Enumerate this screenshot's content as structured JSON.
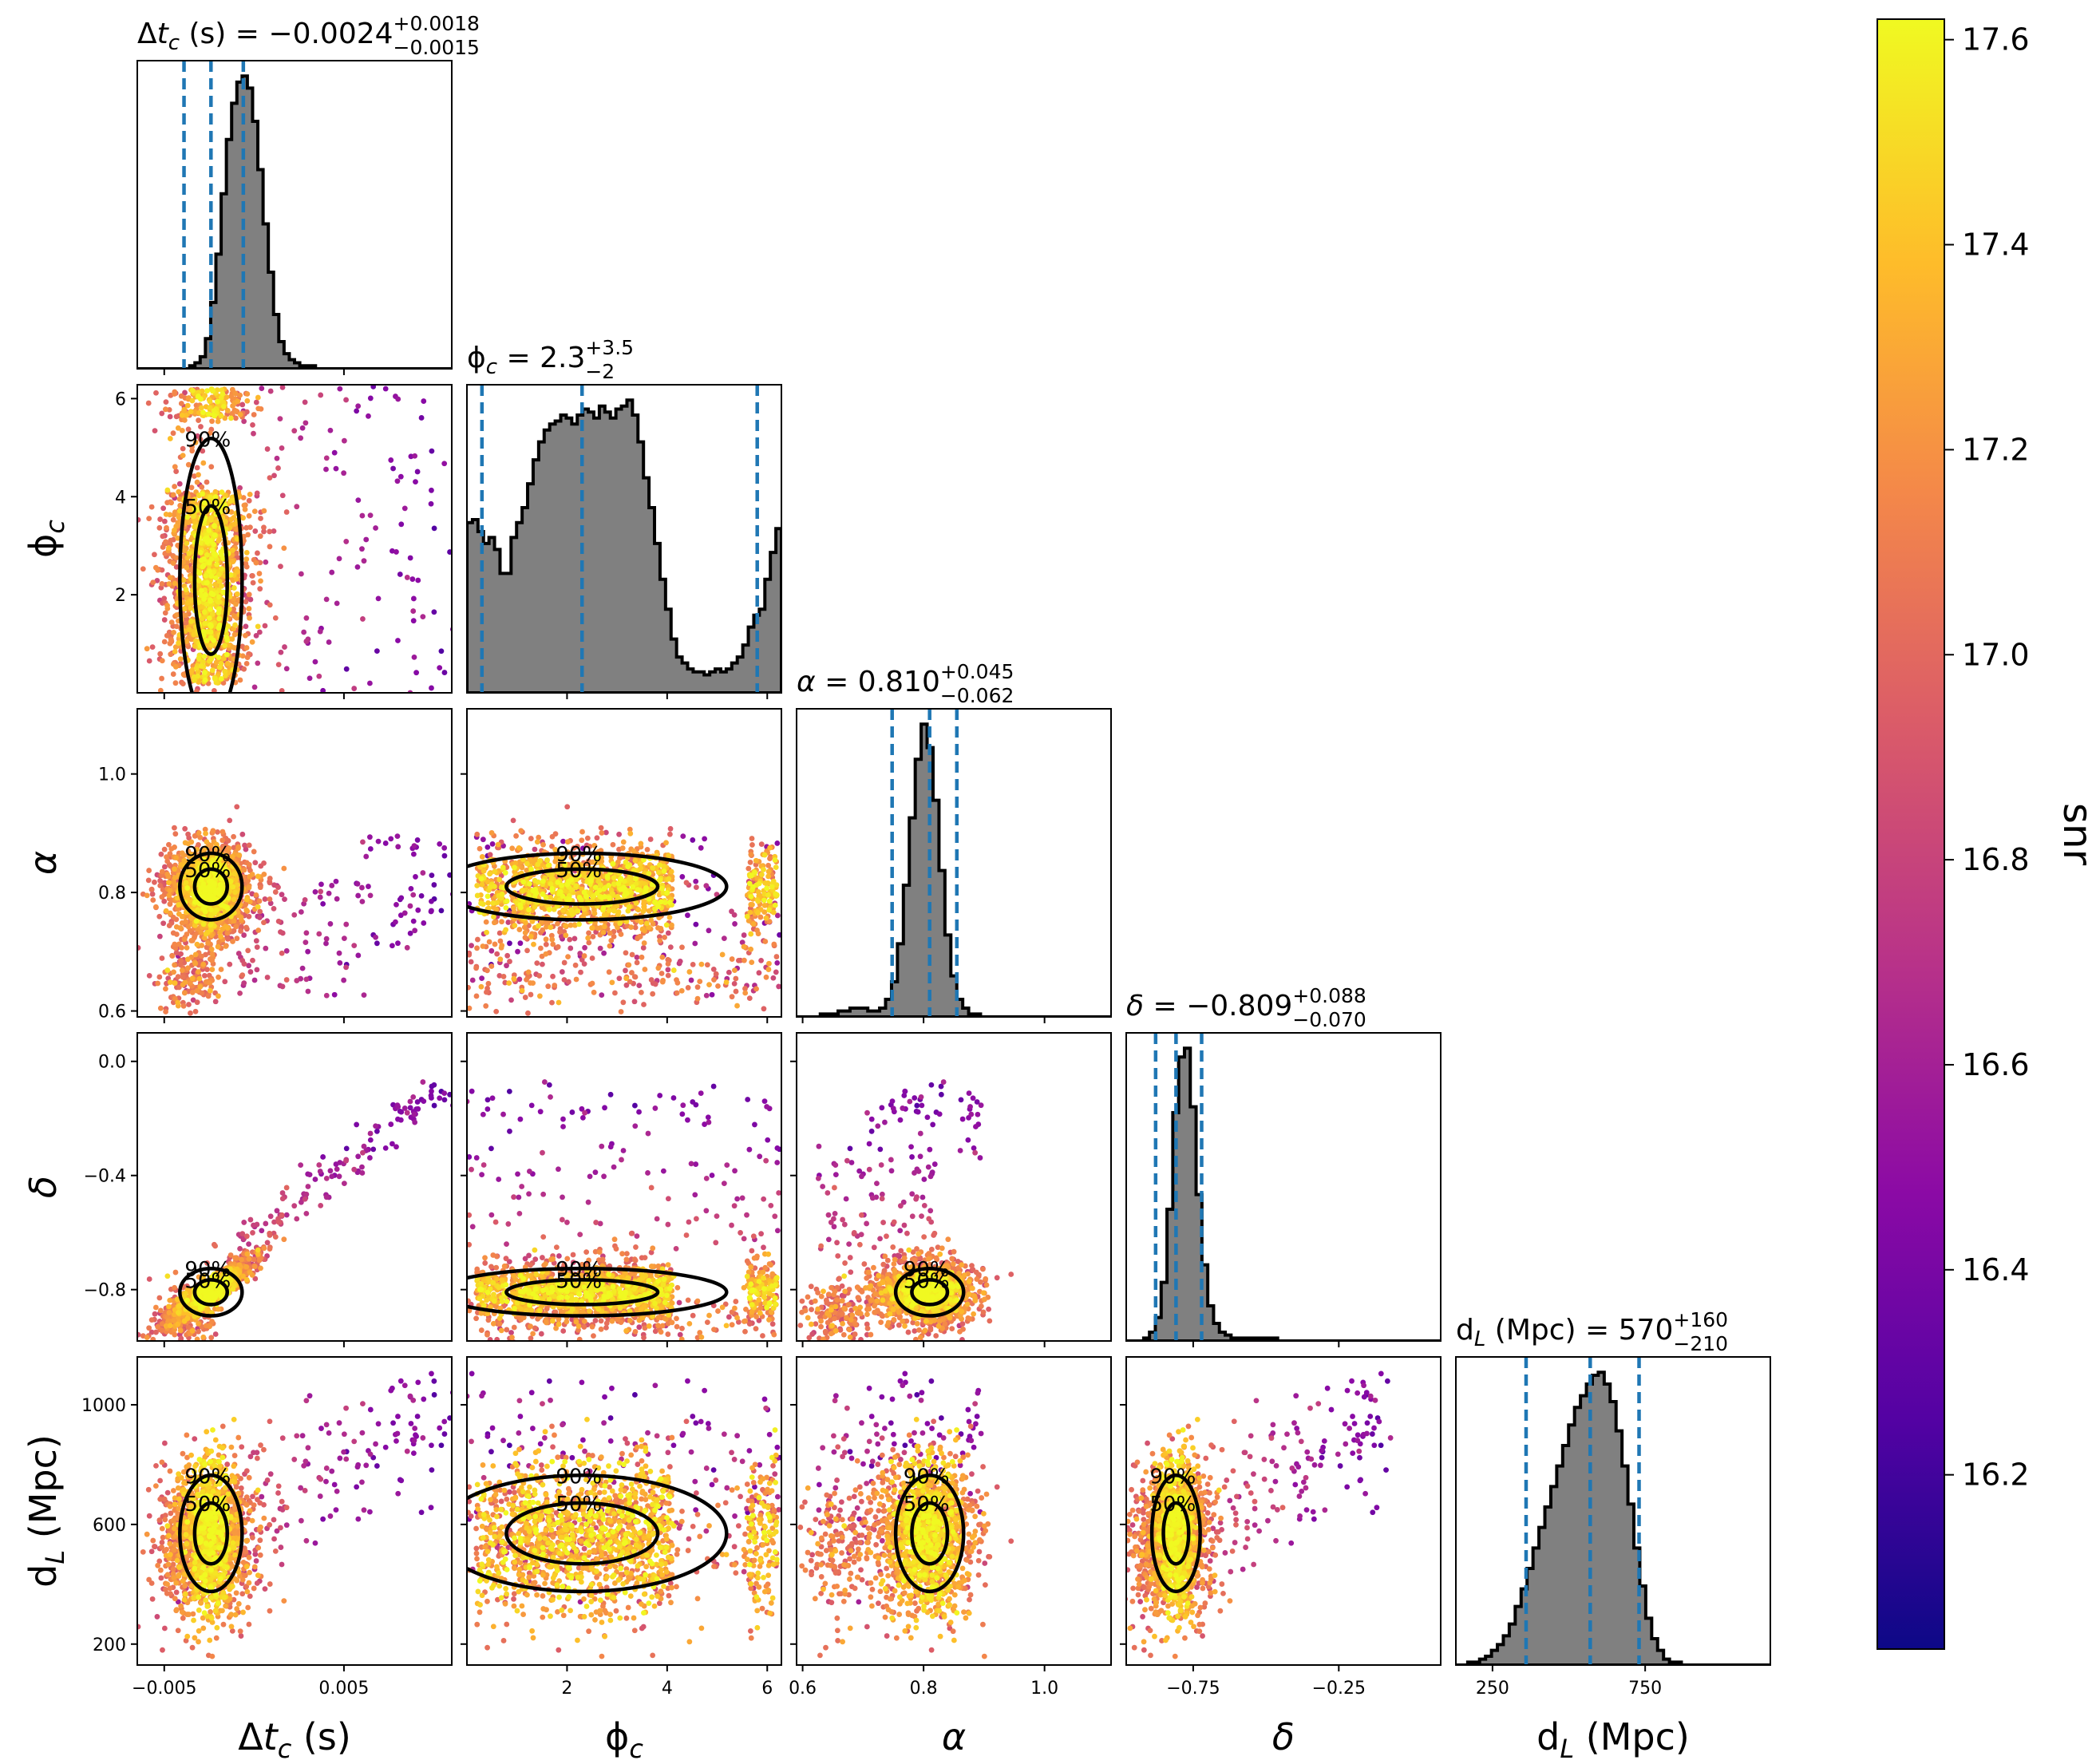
{
  "chart_data": {
    "type": "corner",
    "parameters": [
      {
        "key": "dtc",
        "axis_label_parts": [
          "Δ",
          "t",
          "c",
          " (s)"
        ],
        "range": [
          -0.0065,
          0.011
        ],
        "ticks": [
          {
            "v": -0.005,
            "label": "−0.005"
          },
          {
            "v": 0.005,
            "label": "0.005"
          }
        ],
        "median": -0.0024,
        "lower": -0.0039,
        "upper": -0.0006,
        "title": {
          "name_parts": [
            "Δ",
            "t",
            "c",
            " (s)"
          ],
          "value": "−0.0024",
          "plus": "+0.0018",
          "minus": "−0.0015"
        },
        "hist": [
          0,
          0,
          0,
          0,
          0,
          0,
          0,
          0,
          0,
          0,
          1,
          2,
          4,
          10,
          22,
          38,
          58,
          76,
          88,
          95,
          97,
          93,
          82,
          66,
          48,
          32,
          18,
          9,
          5,
          3,
          2,
          1,
          1,
          1,
          0,
          0,
          0,
          0,
          0,
          0,
          0,
          0,
          0,
          0,
          0,
          0,
          0,
          0,
          0,
          0,
          0,
          0,
          0,
          0,
          0,
          0,
          0,
          0,
          0,
          0
        ]
      },
      {
        "key": "phic",
        "axis_label_parts": [
          "ϕ",
          "",
          "c",
          ""
        ],
        "range": [
          0.0,
          6.283
        ],
        "ticks": [
          {
            "v": 2,
            "label": "2"
          },
          {
            "v": 4,
            "label": "4"
          },
          {
            "v": 6,
            "label": "6"
          }
        ],
        "median": 2.3,
        "lower": 0.3,
        "upper": 5.8,
        "title": {
          "name_parts": [
            "ϕ",
            "",
            "c",
            ""
          ],
          "value": "2.3",
          "plus": "+3.5",
          "minus": "−2"
        },
        "hist": [
          57,
          58,
          54,
          50,
          52,
          48,
          40,
          40,
          52,
          57,
          62,
          70,
          78,
          84,
          88,
          90,
          91,
          93,
          92,
          90,
          93,
          95,
          94,
          92,
          96,
          94,
          92,
          95,
          96,
          98,
          93,
          84,
          72,
          62,
          50,
          38,
          28,
          18,
          12,
          10,
          8,
          7,
          7,
          6,
          7,
          8,
          7,
          8,
          10,
          12,
          16,
          22,
          26,
          28,
          38,
          47,
          55
        ]
      },
      {
        "key": "alpha",
        "axis_label_parts": [
          "α",
          "",
          "",
          ""
        ],
        "range": [
          0.59,
          1.11
        ],
        "ticks": [
          {
            "v": 0.6,
            "label": "0.6"
          },
          {
            "v": 0.8,
            "label": "0.8"
          },
          {
            "v": 1.0,
            "label": "1.0"
          }
        ],
        "median": 0.81,
        "lower": 0.748,
        "upper": 0.855,
        "title": {
          "name_parts": [
            "α",
            "",
            "",
            ""
          ],
          "value": "0.810",
          "plus": "+0.045",
          "minus": "−0.062"
        },
        "hist": [
          0,
          0,
          0,
          0,
          1,
          1,
          1,
          2,
          2,
          3,
          3,
          3,
          2,
          2,
          3,
          6,
          12,
          25,
          45,
          68,
          88,
          100,
          92,
          74,
          50,
          28,
          14,
          6,
          3,
          1,
          1,
          0,
          0,
          0,
          0,
          0,
          0,
          0,
          0,
          0,
          0,
          0,
          0,
          0,
          0,
          0,
          0,
          0,
          0,
          0,
          0,
          0,
          0
        ]
      },
      {
        "key": "delta",
        "axis_label_parts": [
          "δ",
          "",
          "",
          ""
        ],
        "range": [
          -0.98,
          0.1
        ],
        "ticks": [
          {
            "v": -0.75,
            "label": "−0.75"
          },
          {
            "v": -0.25,
            "label": "−0.25"
          }
        ],
        "median": -0.809,
        "lower": -0.879,
        "upper": -0.721,
        "title": {
          "name_parts": [
            "δ",
            "",
            "",
            ""
          ],
          "value": "−0.809",
          "plus": "+0.088",
          "minus": "−0.070"
        },
        "hist": [
          0,
          0,
          0,
          1,
          3,
          8,
          20,
          45,
          78,
          97,
          100,
          80,
          50,
          26,
          12,
          6,
          3,
          2,
          1,
          1,
          1,
          1,
          1,
          1,
          1,
          1,
          0,
          0,
          0,
          0,
          0,
          0,
          0,
          0,
          0,
          0,
          0,
          0,
          0,
          0,
          0,
          0,
          0,
          0,
          0,
          0,
          0,
          0,
          0,
          0,
          0,
          0,
          0,
          0
        ]
      },
      {
        "key": "dl",
        "axis_label_parts": [
          "d",
          "",
          "L",
          " (Mpc)"
        ],
        "range": [
          130,
          1160
        ],
        "ticks": [
          {
            "v": 250,
            "label": "250"
          },
          {
            "v": 750,
            "label": "750"
          }
        ],
        "median": 570,
        "lower": 360,
        "upper": 730,
        "title": {
          "name_parts": [
            "d",
            "",
            "L",
            " (Mpc)"
          ],
          "value": "570",
          "plus": "+160",
          "minus": "−210"
        },
        "hist": [
          0,
          0,
          1,
          1,
          2,
          3,
          5,
          7,
          10,
          14,
          20,
          26,
          33,
          40,
          47,
          54,
          61,
          68,
          75,
          82,
          88,
          92,
          96,
          99,
          100,
          96,
          90,
          80,
          68,
          55,
          40,
          27,
          16,
          9,
          5,
          2,
          1,
          1,
          0,
          0,
          0,
          0,
          0,
          0,
          0,
          0,
          0,
          0,
          0,
          0,
          0,
          0,
          0
        ]
      }
    ],
    "y_ticks": {
      "phic": [
        {
          "v": 2,
          "label": "2"
        },
        {
          "v": 4,
          "label": "4"
        },
        {
          "v": 6,
          "label": "6"
        }
      ],
      "alpha": [
        {
          "v": 0.6,
          "label": "0.6"
        },
        {
          "v": 0.8,
          "label": "0.8"
        },
        {
          "v": 1.0,
          "label": "1.0"
        }
      ],
      "delta": [
        {
          "v": -0.8,
          "label": "−0.8"
        },
        {
          "v": -0.4,
          "label": "−0.4"
        },
        {
          "v": 0.0,
          "label": "0.0"
        }
      ],
      "dl": [
        {
          "v": 200,
          "label": "200"
        },
        {
          "v": 600,
          "label": "600"
        },
        {
          "v": 1000,
          "label": "1000"
        }
      ]
    },
    "contour_levels": [
      "50%",
      "90%"
    ],
    "colorbar": {
      "label": "snr",
      "range": [
        16.03,
        17.62
      ],
      "ticks": [
        {
          "v": 16.2,
          "label": "16.2"
        },
        {
          "v": 16.4,
          "label": "16.4"
        },
        {
          "v": 16.6,
          "label": "16.6"
        },
        {
          "v": 16.8,
          "label": "16.8"
        },
        {
          "v": 17.0,
          "label": "17.0"
        },
        {
          "v": 17.2,
          "label": "17.2"
        },
        {
          "v": 17.4,
          "label": "17.4"
        },
        {
          "v": 17.6,
          "label": "17.6"
        }
      ],
      "colormap": "plasma"
    },
    "colors": {
      "hist_fill": "#808080",
      "hist_edge": "#000000",
      "quantile_line": "#1f77b4",
      "contour": "#000000"
    }
  }
}
